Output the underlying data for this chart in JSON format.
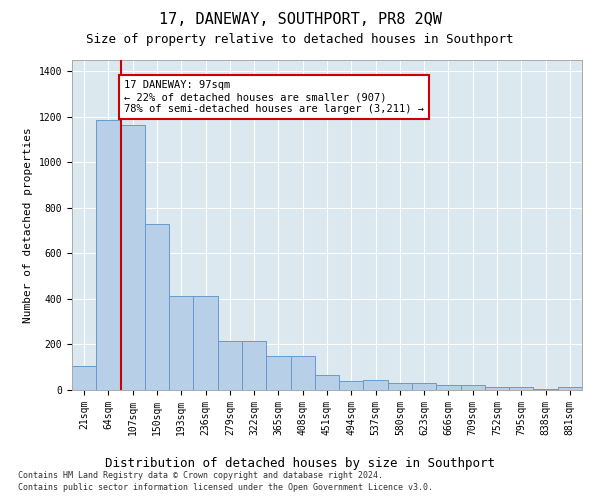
{
  "title": "17, DANEWAY, SOUTHPORT, PR8 2QW",
  "subtitle": "Size of property relative to detached houses in Southport",
  "xlabel": "Distribution of detached houses by size in Southport",
  "ylabel": "Number of detached properties",
  "footer_line1": "Contains HM Land Registry data © Crown copyright and database right 2024.",
  "footer_line2": "Contains public sector information licensed under the Open Government Licence v3.0.",
  "bar_labels": [
    "21sqm",
    "64sqm",
    "107sqm",
    "150sqm",
    "193sqm",
    "236sqm",
    "279sqm",
    "322sqm",
    "365sqm",
    "408sqm",
    "451sqm",
    "494sqm",
    "537sqm",
    "580sqm",
    "623sqm",
    "666sqm",
    "709sqm",
    "752sqm",
    "795sqm",
    "838sqm",
    "881sqm"
  ],
  "bar_values": [
    107,
    1185,
    1165,
    730,
    415,
    415,
    215,
    215,
    150,
    150,
    65,
    40,
    45,
    30,
    30,
    20,
    20,
    15,
    15,
    5,
    15
  ],
  "bar_color": "#b8cfe8",
  "bar_edge_color": "#6699cc",
  "vline_x": 1.5,
  "vline_color": "#cc0000",
  "annotation_text": "17 DANEWAY: 97sqm\n← 22% of detached houses are smaller (907)\n78% of semi-detached houses are larger (3,211) →",
  "annotation_box_color": "white",
  "annotation_box_edge": "#cc0000",
  "ylim": [
    0,
    1450
  ],
  "yticks": [
    0,
    200,
    400,
    600,
    800,
    1000,
    1200,
    1400
  ],
  "background_color": "#dce8f0",
  "grid_color": "white",
  "title_fontsize": 11,
  "subtitle_fontsize": 9,
  "tick_fontsize": 7,
  "ylabel_fontsize": 8,
  "xlabel_fontsize": 9,
  "annotation_fontsize": 7.5,
  "footer_fontsize": 6
}
